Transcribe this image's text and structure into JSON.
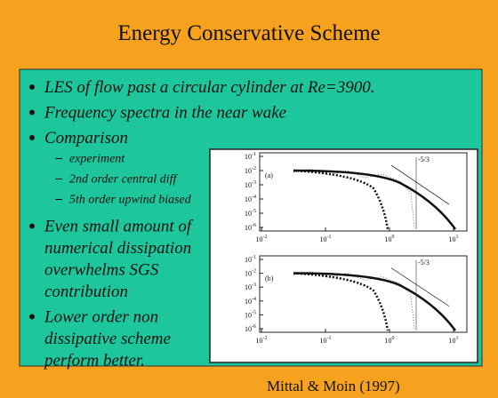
{
  "title": "Energy Conservative Scheme",
  "bullets": [
    {
      "lines": [
        "LES of flow past a circular cylinder at Re=3900."
      ]
    },
    {
      "lines": [
        "Frequency spectra in the near wake"
      ]
    },
    {
      "lines": [
        "Comparison"
      ],
      "subitems": [
        "experiment",
        "2nd order central diff",
        "5th order upwind biased"
      ]
    },
    {
      "lines": [
        "Even small amount of",
        "numerical dissipation",
        "overwhelms SGS",
        "contribution"
      ]
    },
    {
      "lines": [
        "Lower order non",
        "dissipative scheme",
        "perform better."
      ]
    }
  ],
  "figure": {
    "panels": [
      {
        "label": "(a)",
        "slope": "-5/3"
      },
      {
        "label": "(b)",
        "slope": "-5/3"
      }
    ],
    "yticks": [
      {
        "base": "10",
        "exp": "-1"
      },
      {
        "base": "10",
        "exp": "-2"
      },
      {
        "base": "10",
        "exp": "-3"
      },
      {
        "base": "10",
        "exp": "-4"
      },
      {
        "base": "10",
        "exp": "-5"
      },
      {
        "base": "10",
        "exp": "-6"
      }
    ],
    "xticks": [
      {
        "base": "10",
        "exp": "-2"
      },
      {
        "base": "10",
        "exp": "-1"
      },
      {
        "base": "10",
        "exp": "0"
      },
      {
        "base": "10",
        "exp": "1"
      }
    ]
  },
  "citation": "Mittal & Moin (1997)"
}
